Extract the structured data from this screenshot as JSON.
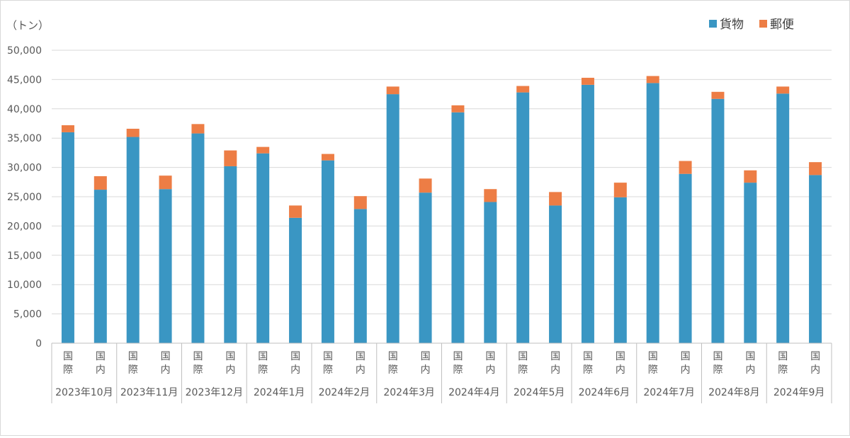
{
  "chart_data": {
    "type": "bar",
    "stacked": true,
    "unit_label": "（トン）",
    "ylim": [
      0,
      50000
    ],
    "y_ticks": [
      "0",
      "5,000",
      "10,000",
      "15,000",
      "20,000",
      "25,000",
      "30,000",
      "35,000",
      "40,000",
      "45,000",
      "50,000"
    ],
    "grid": true,
    "legend_position": "top-right",
    "colors": {
      "cargo": "#3a96c3",
      "mail": "#ed7d45"
    },
    "series": [
      {
        "name": "貨物",
        "values": [
          36000,
          26200,
          35200,
          26300,
          35800,
          30200,
          32400,
          21400,
          31200,
          22900,
          42500,
          25700,
          39400,
          24100,
          42800,
          23500,
          44100,
          24900,
          44400,
          28900,
          41700,
          27400,
          42600,
          28700
        ]
      },
      {
        "name": "郵便",
        "values": [
          1200,
          2300,
          1400,
          2300,
          1600,
          2700,
          1100,
          2100,
          1100,
          2200,
          1300,
          2400,
          1200,
          2200,
          1100,
          2300,
          1200,
          2500,
          1200,
          2200,
          1200,
          2100,
          1200,
          2200
        ]
      }
    ],
    "groups": [
      {
        "label": "2023年10月",
        "sub": [
          [
            "国",
            "際"
          ],
          [
            "国",
            "内"
          ]
        ]
      },
      {
        "label": "2023年11月",
        "sub": [
          [
            "国",
            "際"
          ],
          [
            "国",
            "内"
          ]
        ]
      },
      {
        "label": "2023年12月",
        "sub": [
          [
            "国",
            "際"
          ],
          [
            "国",
            "内"
          ]
        ]
      },
      {
        "label": "2024年1月",
        "sub": [
          [
            "国",
            "際"
          ],
          [
            "国",
            "内"
          ]
        ]
      },
      {
        "label": "2024年2月",
        "sub": [
          [
            "国",
            "際"
          ],
          [
            "国",
            "内"
          ]
        ]
      },
      {
        "label": "2024年3月",
        "sub": [
          [
            "国",
            "際"
          ],
          [
            "国",
            "内"
          ]
        ]
      },
      {
        "label": "2024年4月",
        "sub": [
          [
            "国",
            "際"
          ],
          [
            "国",
            "内"
          ]
        ]
      },
      {
        "label": "2024年5月",
        "sub": [
          [
            "国",
            "際"
          ],
          [
            "国",
            "内"
          ]
        ]
      },
      {
        "label": "2024年6月",
        "sub": [
          [
            "国",
            "際"
          ],
          [
            "国",
            "内"
          ]
        ]
      },
      {
        "label": "2024年7月",
        "sub": [
          [
            "国",
            "際"
          ],
          [
            "国",
            "内"
          ]
        ]
      },
      {
        "label": "2024年8月",
        "sub": [
          [
            "国",
            "際"
          ],
          [
            "国",
            "内"
          ]
        ]
      },
      {
        "label": "2024年9月",
        "sub": [
          [
            "国",
            "際"
          ],
          [
            "国",
            "内"
          ]
        ]
      }
    ]
  }
}
